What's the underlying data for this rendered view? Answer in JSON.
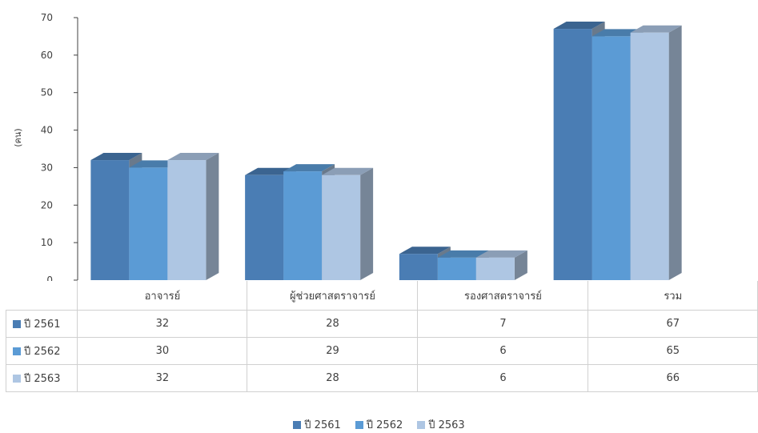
{
  "chart_data": {
    "type": "bar",
    "categories": [
      "อาจารย์",
      "ผู้ช่วยศาสตราจารย์",
      "รองศาสตราจารย์",
      "รวม"
    ],
    "series": [
      {
        "name": "ปี 2561",
        "values": [
          32,
          28,
          7,
          67
        ],
        "color": "#4a7db4"
      },
      {
        "name": "ปี 2562",
        "values": [
          30,
          29,
          6,
          65
        ],
        "color": "#5b9bd5"
      },
      {
        "name": "ปี 2563",
        "values": [
          32,
          28,
          6,
          66
        ],
        "color": "#aec6e3"
      }
    ],
    "ylabel": "(คน)",
    "ylim": [
      0,
      70
    ],
    "yticks": [
      "0",
      "10",
      "20",
      "30",
      "40",
      "50",
      "60",
      "70"
    ],
    "grid": false,
    "data_table": true,
    "legend_position": "bottom",
    "style": "3d-clustered-column"
  }
}
